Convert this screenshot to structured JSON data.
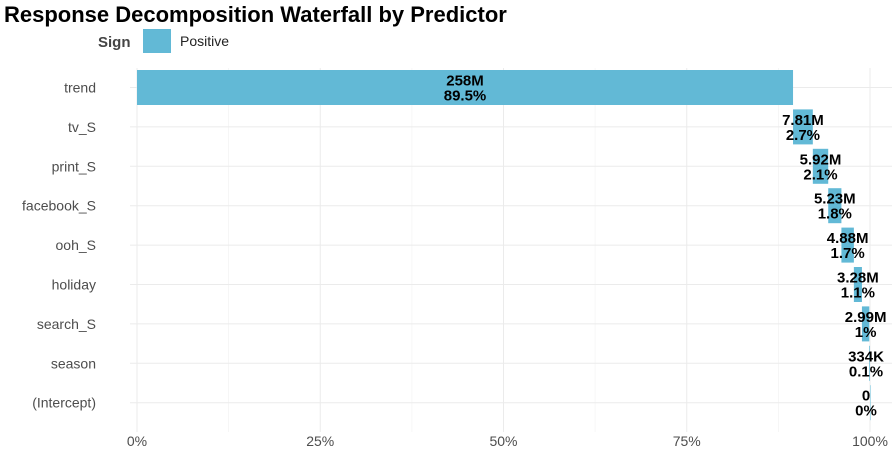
{
  "chart_data": {
    "type": "bar",
    "subtype": "waterfall-horizontal",
    "title": "Response Decomposition Waterfall by Predictor",
    "legend": {
      "title": "Sign",
      "entries": [
        {
          "label": "Positive",
          "color": "#62b9d6"
        }
      ],
      "placement": "top-left"
    },
    "categories": [
      "trend",
      "tv_S",
      "print_S",
      "facebook_S",
      "ooh_S",
      "holiday",
      "search_S",
      "season",
      "(Intercept)"
    ],
    "series": [
      {
        "start_pct": [
          0,
          89.5,
          92.2,
          94.3,
          96.1,
          97.8,
          98.9,
          99.9,
          100
        ],
        "end_pct": [
          89.5,
          92.2,
          94.3,
          96.1,
          97.8,
          98.9,
          99.9,
          100,
          100
        ],
        "value_labels": [
          "258M",
          "7.81M",
          "5.92M",
          "5.23M",
          "4.88M",
          "3.28M",
          "2.99M",
          "334K",
          "0"
        ],
        "pct_labels": [
          "89.5%",
          "2.7%",
          "2.1%",
          "1.8%",
          "1.7%",
          "1.1%",
          "1%",
          "0.1%",
          "0%"
        ]
      }
    ],
    "x_ticks": [
      "0%",
      "25%",
      "50%",
      "75%",
      "100%"
    ],
    "xlim": [
      0,
      100
    ],
    "grid": true
  }
}
